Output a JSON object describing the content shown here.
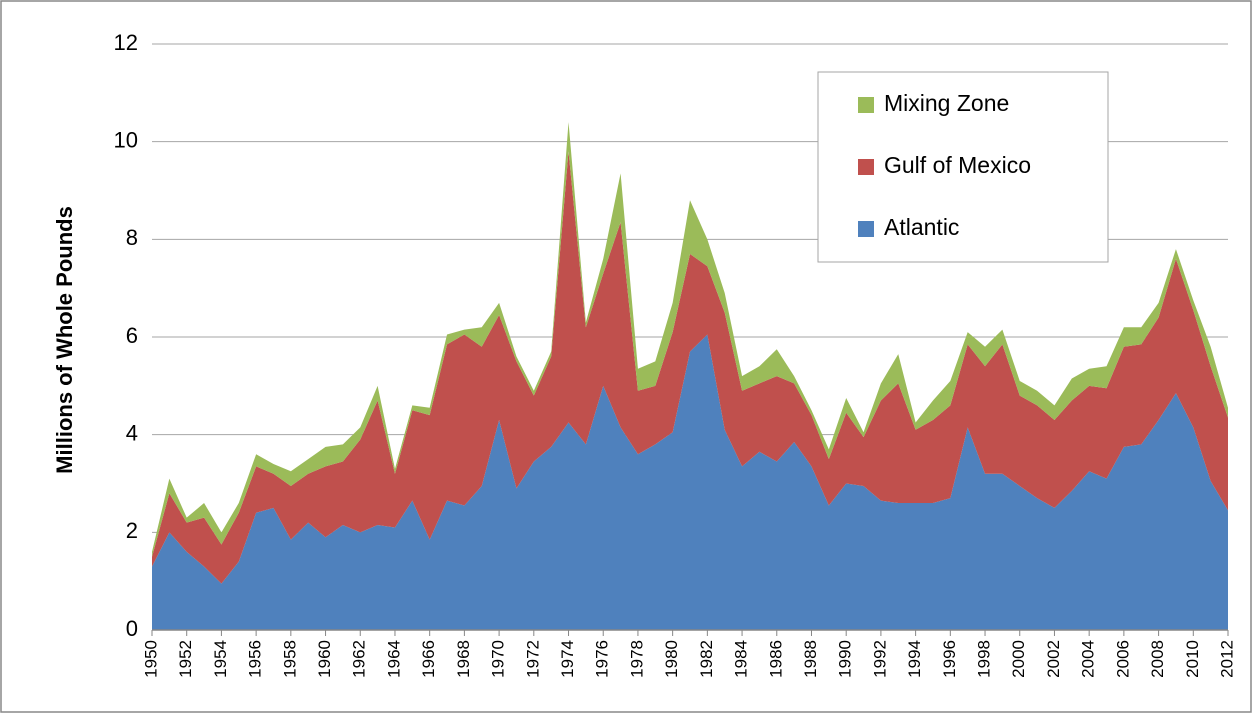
{
  "chart_data": {
    "type": "stacked_area",
    "ylabel": "Millions of Whole Pounds",
    "x": [
      1950,
      1951,
      1952,
      1953,
      1954,
      1955,
      1956,
      1957,
      1958,
      1959,
      1960,
      1961,
      1962,
      1963,
      1964,
      1965,
      1966,
      1967,
      1968,
      1969,
      1970,
      1971,
      1972,
      1973,
      1974,
      1975,
      1976,
      1977,
      1978,
      1979,
      1980,
      1981,
      1982,
      1983,
      1984,
      1985,
      1986,
      1987,
      1988,
      1989,
      1990,
      1991,
      1992,
      1993,
      1994,
      1995,
      1996,
      1997,
      1998,
      1999,
      2000,
      2001,
      2002,
      2003,
      2004,
      2005,
      2006,
      2007,
      2008,
      2009,
      2010,
      2011,
      2012
    ],
    "xlim": [
      1950,
      2012
    ],
    "xticks": [
      1950,
      1952,
      1954,
      1956,
      1958,
      1960,
      1962,
      1964,
      1966,
      1968,
      1970,
      1972,
      1974,
      1976,
      1978,
      1980,
      1982,
      1984,
      1986,
      1988,
      1990,
      1992,
      1994,
      1996,
      1998,
      2000,
      2002,
      2004,
      2006,
      2008,
      2010,
      2012
    ],
    "ylim": [
      0,
      12
    ],
    "yticks": [
      0,
      2,
      4,
      6,
      8,
      10,
      12
    ],
    "grid": true,
    "legend": "upper right",
    "series": [
      {
        "name": "Atlantic",
        "color": "#4f81bd",
        "values": [
          1.3,
          2.0,
          1.6,
          1.3,
          0.95,
          1.4,
          2.4,
          2.5,
          1.85,
          2.2,
          1.9,
          2.15,
          2.0,
          2.15,
          2.1,
          2.65,
          1.85,
          2.65,
          2.55,
          2.95,
          4.3,
          2.9,
          3.45,
          3.75,
          4.25,
          3.8,
          5.0,
          4.15,
          3.6,
          3.8,
          4.05,
          5.7,
          6.05,
          4.1,
          3.35,
          3.65,
          3.45,
          3.85,
          3.35,
          2.55,
          3.0,
          2.95,
          2.65,
          2.6,
          2.6,
          2.6,
          2.7,
          4.15,
          3.2,
          3.2,
          2.95,
          2.7,
          2.5,
          2.85,
          3.25,
          3.1,
          3.75,
          3.8,
          4.3,
          4.85,
          4.15,
          3.05,
          2.45
        ]
      },
      {
        "name": "Gulf of Mexico",
        "color": "#c0504d",
        "values": [
          0.2,
          0.8,
          0.6,
          1.0,
          0.8,
          1.0,
          0.95,
          0.7,
          1.1,
          1.0,
          1.45,
          1.3,
          1.9,
          2.55,
          1.1,
          1.85,
          2.55,
          3.2,
          3.5,
          2.85,
          2.15,
          2.6,
          1.35,
          1.85,
          5.55,
          2.4,
          2.3,
          4.2,
          1.3,
          1.2,
          2.05,
          2.0,
          1.4,
          2.4,
          1.55,
          1.4,
          1.75,
          1.2,
          1.05,
          0.95,
          1.45,
          1.0,
          2.05,
          2.45,
          1.5,
          1.7,
          1.9,
          1.7,
          2.2,
          2.65,
          1.85,
          1.9,
          1.8,
          1.85,
          1.75,
          1.85,
          2.05,
          2.05,
          2.1,
          2.75,
          2.4,
          2.35,
          1.9
        ]
      },
      {
        "name": "Mixing Zone",
        "color": "#9bbb59",
        "values": [
          0.1,
          0.3,
          0.1,
          0.3,
          0.25,
          0.2,
          0.25,
          0.2,
          0.3,
          0.3,
          0.4,
          0.35,
          0.25,
          0.3,
          0.1,
          0.1,
          0.15,
          0.2,
          0.1,
          0.4,
          0.25,
          0.1,
          0.1,
          0.1,
          0.6,
          0.1,
          0.3,
          1.0,
          0.45,
          0.5,
          0.6,
          1.1,
          0.55,
          0.4,
          0.3,
          0.35,
          0.55,
          0.15,
          0.1,
          0.2,
          0.3,
          0.1,
          0.35,
          0.6,
          0.15,
          0.4,
          0.5,
          0.25,
          0.4,
          0.3,
          0.3,
          0.3,
          0.3,
          0.45,
          0.35,
          0.45,
          0.4,
          0.35,
          0.3,
          0.2,
          0.2,
          0.4,
          0.2
        ]
      }
    ]
  }
}
